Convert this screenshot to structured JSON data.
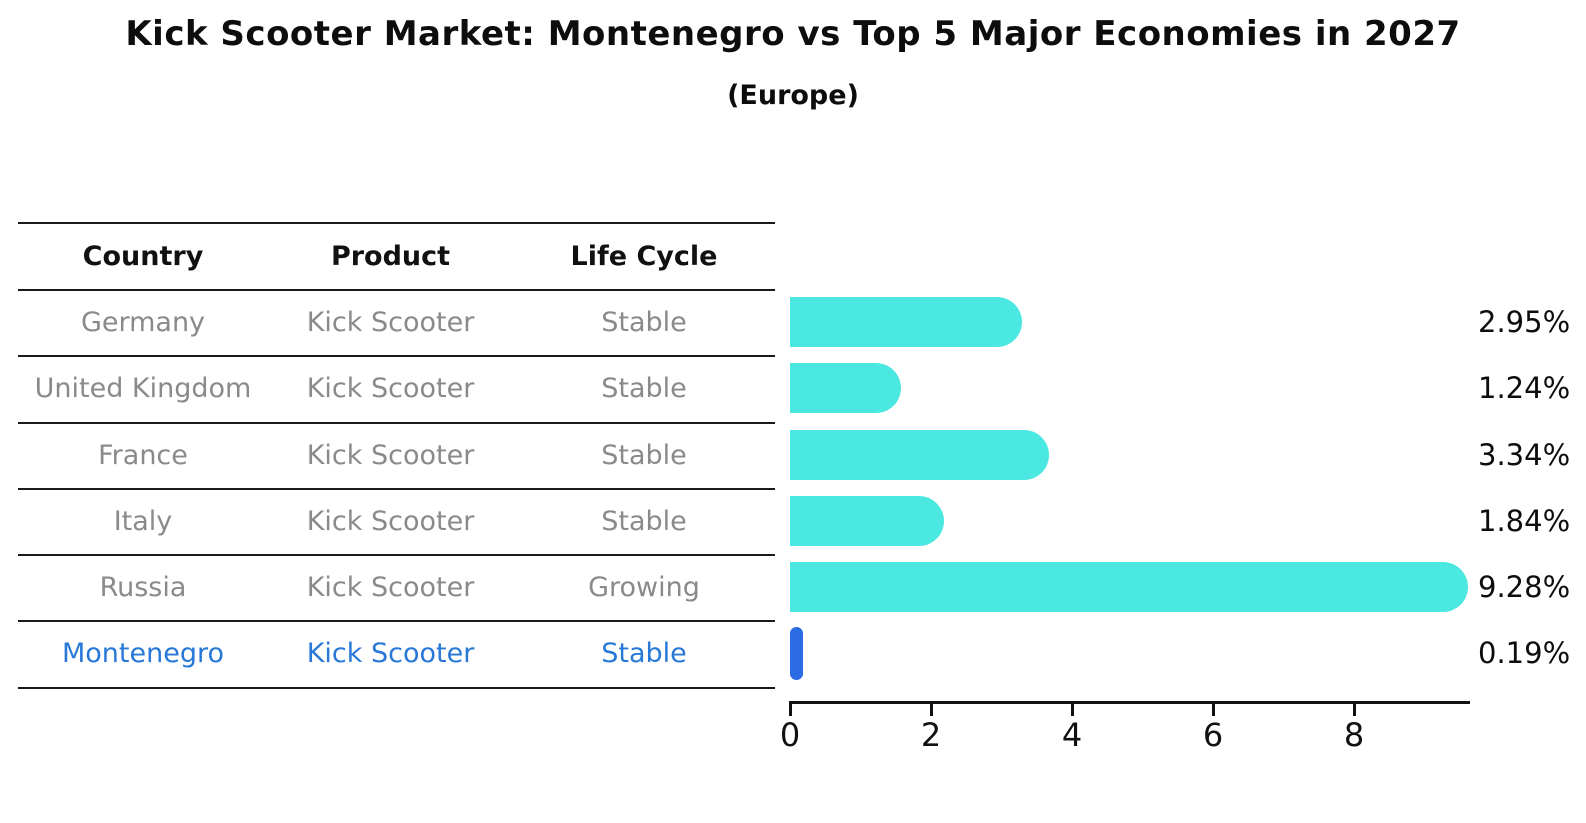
{
  "title": "Kick Scooter Market: Montenegro vs Top 5 Major Economies in 2027",
  "subtitle": "(Europe)",
  "table": {
    "headers": [
      "Country",
      "Product",
      "Life Cycle"
    ],
    "rows": [
      {
        "country": "Germany",
        "product": "Kick Scooter",
        "life_cycle": "Stable",
        "highlighted": false
      },
      {
        "country": "United Kingdom",
        "product": "Kick Scooter",
        "life_cycle": "Stable",
        "highlighted": false
      },
      {
        "country": "France",
        "product": "Kick Scooter",
        "life_cycle": "Stable",
        "highlighted": false
      },
      {
        "country": "Italy",
        "product": "Kick Scooter",
        "life_cycle": "Stable",
        "highlighted": false
      },
      {
        "country": "Russia",
        "product": "Kick Scooter",
        "life_cycle": "Growing",
        "highlighted": false
      },
      {
        "country": "Montenegro",
        "product": "Kick Scooter",
        "life_cycle": "Stable",
        "highlighted": true
      }
    ]
  },
  "chart_data": {
    "type": "bar",
    "orientation": "horizontal",
    "title": "Kick Scooter Market: Montenegro vs Top 5 Major Economies in 2027",
    "subtitle": "(Europe)",
    "categories": [
      "Germany",
      "United Kingdom",
      "France",
      "Italy",
      "Russia",
      "Montenegro"
    ],
    "values": [
      2.95,
      1.24,
      3.34,
      1.84,
      9.28,
      0.19
    ],
    "labels": [
      "2.95%",
      "1.24%",
      "3.34%",
      "1.84%",
      "9.28%",
      "0.19%"
    ],
    "unit": "percent",
    "xlabel": "",
    "ylabel": "",
    "xlim": [
      0,
      9.8
    ],
    "xticks": [
      0,
      2,
      4,
      6,
      8
    ],
    "grid": false,
    "legend": false,
    "highlight_index": 5
  },
  "colors": {
    "bar": "#4ae8e0",
    "highlight_bar": "#2b6ce5",
    "highlight_text": "#2878d8",
    "table_text": "#8a8a8a",
    "header_text": "#111111",
    "rule": "#1a1a1a"
  }
}
